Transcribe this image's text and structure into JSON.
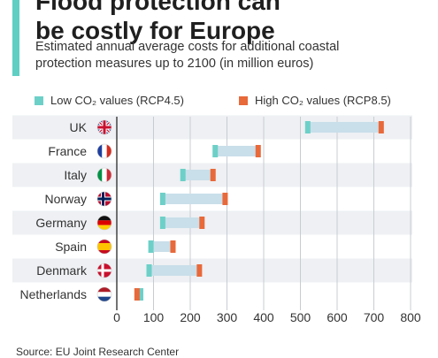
{
  "header": {
    "title_line1": "Flood protection can",
    "title_line2": "be costly for Europe",
    "subtitle_line1": "Estimated annual average costs for additional coastal",
    "subtitle_line2": "protection measures up to 2100 (in million euros)",
    "accent_color": "#5fcfc4"
  },
  "legend": {
    "low_label": "Low CO₂ values (RCP4.5)",
    "high_label": "High CO₂ values (RCP8.5)",
    "low_color": "#6dd0c8",
    "high_color": "#e8693a"
  },
  "source": "Source: EU Joint Research Center",
  "chart_data": {
    "type": "range-bar",
    "categories": [
      "UK",
      "France",
      "Italy",
      "Norway",
      "Germany",
      "Spain",
      "Denmark",
      "Netherlands"
    ],
    "flags": [
      "gb-flag-icon",
      "fr-flag-icon",
      "it-flag-icon",
      "no-flag-icon",
      "de-flag-icon",
      "es-flag-icon",
      "dk-flag-icon",
      "nl-flag-icon"
    ],
    "series": [
      {
        "name": "Low CO₂ values (RCP4.5)",
        "color": "#6dd0c8",
        "values": [
          520,
          268,
          180,
          125,
          125,
          93,
          88,
          65
        ]
      },
      {
        "name": "High CO₂ values (RCP8.5)",
        "color": "#e8693a",
        "values": [
          720,
          385,
          262,
          295,
          232,
          153,
          225,
          55
        ]
      }
    ],
    "range_color": "#c9dfea",
    "x_ticks": [
      0,
      100,
      200,
      300,
      400,
      500,
      600,
      700,
      800
    ],
    "xlim": [
      0,
      800
    ],
    "grid": true
  }
}
